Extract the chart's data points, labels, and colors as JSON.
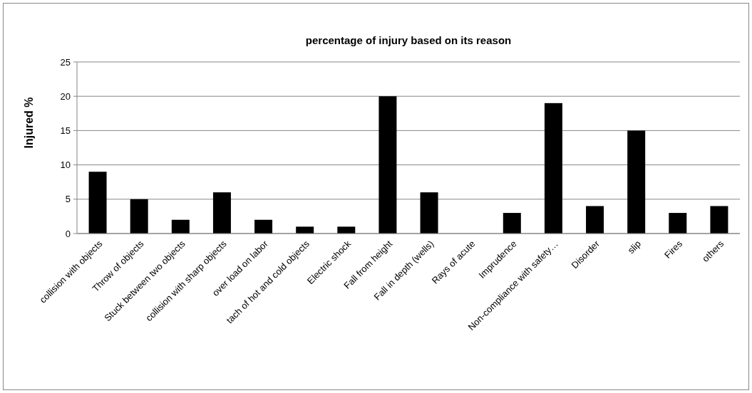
{
  "chart_data": {
    "type": "bar",
    "title": "percentage of injury based on its reason",
    "ylabel": "Injured %",
    "categories": [
      "collision with objects",
      "Throw of objects",
      "Stuck between two objects",
      "collision with sharp objects",
      "over load on labor",
      "tach of hot and cold objects",
      "Electric shock",
      "Fall from height",
      "Fall in depth (wells)",
      "Rays of acute",
      "Imprudence",
      "Non-compliance with safety…",
      "Disorder",
      "slip",
      "Fires",
      "others"
    ],
    "values": [
      9,
      5,
      2,
      6,
      2,
      1,
      1,
      20,
      6,
      0,
      3,
      19,
      4,
      15,
      3,
      4
    ],
    "color": "#000000",
    "ylim": [
      0,
      25
    ],
    "yticks": [
      0,
      5,
      10,
      15,
      20,
      25
    ],
    "grid": "y"
  }
}
